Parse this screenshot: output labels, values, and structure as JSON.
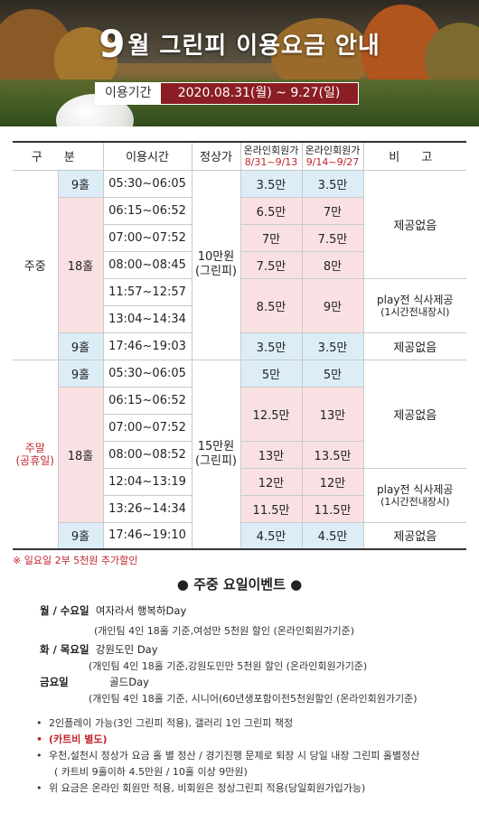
{
  "hero": {
    "month": "9",
    "title_rest": "월 그린피 이용요금 안내",
    "period_label": "이용기간",
    "period_value": "2020.08.31(월) ~ 9.27(일)"
  },
  "table": {
    "headers": {
      "category": "구 분",
      "time": "이용시간",
      "regular": "정상가",
      "online1": "온라인회원가",
      "online1_dates": "8/31~9/13",
      "online2": "온라인회원가",
      "online2_dates": "9/14~9/27",
      "note": "비 고"
    },
    "weekday": {
      "label": "주중",
      "regular_price": "10만원",
      "regular_sub": "(그린피)",
      "rows": [
        {
          "holes": "9홀",
          "time": "05:30~06:05",
          "p1": "3.5만",
          "p2": "3.5만"
        },
        {
          "holes": "18홀",
          "time": "06:15~06:52",
          "p1": "6.5만",
          "p2": "7만"
        },
        {
          "time": "07:00~07:52",
          "p1": "7만",
          "p2": "7.5만"
        },
        {
          "time": "08:00~08:45",
          "p1": "7.5만",
          "p2": "8만"
        },
        {
          "time": "11:57~12:57",
          "p1": "8.5만",
          "p2": "9만"
        },
        {
          "time": "13:04~14:34"
        },
        {
          "holes": "9홀",
          "time": "17:46~19:03",
          "p1": "3.5만",
          "p2": "3.5만"
        }
      ],
      "note_none_1": "제공없음",
      "note_meal_1": "play전 식사제공",
      "note_meal_2": "(1시간전내장시)",
      "note_none_2": "제공없음"
    },
    "weekend": {
      "label": "주말",
      "label_sub": "(공휴일)",
      "regular_price": "15만원",
      "regular_sub": "(그린피)",
      "rows": [
        {
          "holes": "9홀",
          "time": "05:30~06:05",
          "p1": "5만",
          "p2": "5만"
        },
        {
          "holes": "18홀",
          "time": "06:15~06:52",
          "p1": "12.5만",
          "p2": "13만"
        },
        {
          "time": "07:00~07:52"
        },
        {
          "time": "08:00~08:52",
          "p1": "13만",
          "p2": "13.5만"
        },
        {
          "time": "12:04~13:19",
          "p1": "12만",
          "p2": "12만"
        },
        {
          "time": "13:26~14:34",
          "p1": "11.5만",
          "p2": "11.5만"
        },
        {
          "holes": "9홀",
          "time": "17:46~19:10",
          "p1": "4.5만",
          "p2": "4.5만"
        }
      ],
      "note_none_1": "제공없음",
      "note_meal_1": "play전 식사제공",
      "note_meal_2": "(1시간전내장시)",
      "note_none_2": "제공없음"
    }
  },
  "footnote": "※ 일요일 2부 5천원 추가할인",
  "events": {
    "title": "● 주중 요일이벤트 ●",
    "mon_wed_day": "월 / 수요일",
    "mon_wed_name": "여자라서 행복하Day",
    "mon_wed_desc": "(개인팀 4인 18홀 기준,여성만 5천원 할인 (온라인회원가기준)",
    "thu_day": "화 / 목요일",
    "thu_name": "강원도민 Day",
    "thu_desc": "(개인팀 4인 18홀 기준,강원도민만 5천원 할인 (온라인회원가기준)",
    "fri_day": "금요일",
    "fri_name": "골드Day",
    "fri_desc": "(개인팀 4인 18홀 기준, 시니어(60년생포함이전5천원할인 (온라인회원가기준)"
  },
  "bullets": [
    "2인플레이 가능(3인 그린피 적용), 갤러리 1인 그린피 책정",
    "(카트비 별도)",
    "우천,설천시 정상가 요금 홀 별 정산 / 경기진행 문제로 퇴장 시 당일 내장 그린피 홀별정산",
    "( 카트비 9홀이하 4.5만원 / 10홀 이상 9만원)",
    "위 요금은 온라인 회원만 적용, 비회원은 정상그린피 적용(당일회원가입가능)"
  ]
}
